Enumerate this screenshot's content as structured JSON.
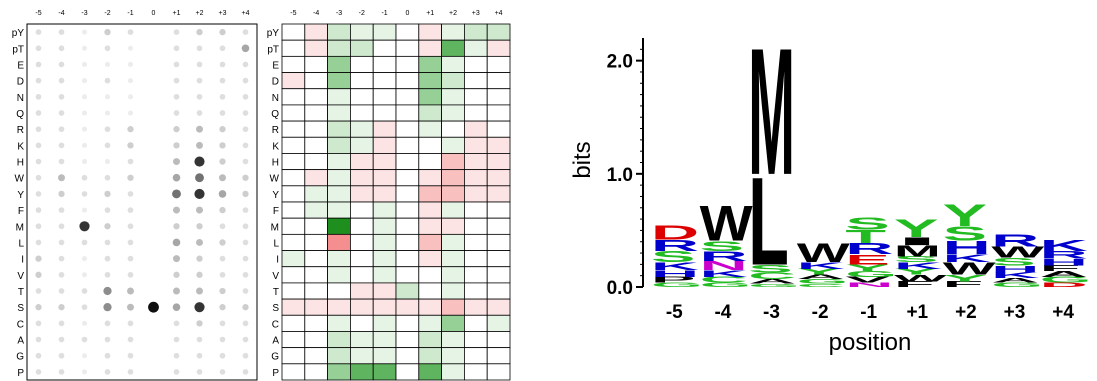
{
  "positions": [
    "-5",
    "-4",
    "-3",
    "-2",
    "-1",
    "0",
    "+1",
    "+2",
    "+3",
    "+4"
  ],
  "residues": [
    "pY",
    "pT",
    "E",
    "D",
    "N",
    "Q",
    "R",
    "K",
    "H",
    "W",
    "Y",
    "F",
    "M",
    "L",
    "I",
    "V",
    "T",
    "S",
    "C",
    "A",
    "G",
    "P"
  ],
  "spots": [
    [
      0.2,
      0.2,
      0.1,
      0.3,
      0.2,
      0,
      0.2,
      0.3,
      0.3,
      0.2
    ],
    [
      0.2,
      0.2,
      0.1,
      0.2,
      0.1,
      0,
      0.2,
      0.2,
      0.2,
      0.5
    ],
    [
      0.2,
      0.2,
      0.1,
      0.1,
      0.1,
      0,
      0.2,
      0.2,
      0.2,
      0.2
    ],
    [
      0.2,
      0.2,
      0.1,
      0.2,
      0.1,
      0,
      0.2,
      0.2,
      0.2,
      0.2
    ],
    [
      0.2,
      0.2,
      0.1,
      0.1,
      0.1,
      0,
      0.2,
      0.2,
      0.2,
      0.2
    ],
    [
      0.2,
      0.2,
      0.1,
      0.1,
      0.1,
      0,
      0.2,
      0.2,
      0.2,
      0.2
    ],
    [
      0.2,
      0.2,
      0.1,
      0.2,
      0.3,
      0,
      0.3,
      0.4,
      0.3,
      0.2
    ],
    [
      0.2,
      0.2,
      0.1,
      0.2,
      0.3,
      0,
      0.3,
      0.4,
      0.3,
      0.2
    ],
    [
      0.2,
      0.2,
      0.1,
      0.1,
      0.2,
      0,
      0.4,
      0.9,
      0.3,
      0.2
    ],
    [
      0.2,
      0.4,
      0.2,
      0.2,
      0.3,
      0,
      0.5,
      0.7,
      0.4,
      0.3
    ],
    [
      0.2,
      0.3,
      0.2,
      0.3,
      0.2,
      0,
      0.7,
      0.9,
      0.5,
      0.3
    ],
    [
      0.2,
      0.2,
      0.1,
      0.2,
      0.2,
      0,
      0.4,
      0.4,
      0.3,
      0.2
    ],
    [
      0.2,
      0.2,
      0.9,
      0.3,
      0.2,
      0,
      0.3,
      0.3,
      0.2,
      0.2
    ],
    [
      0.2,
      0.2,
      0.2,
      0.2,
      0.2,
      0,
      0.5,
      0.4,
      0.3,
      0.2
    ],
    [
      0.3,
      0.2,
      0.1,
      0.2,
      0.2,
      0,
      0.4,
      0.3,
      0.2,
      0.2
    ],
    [
      0.3,
      0.2,
      0.1,
      0.2,
      0.2,
      0,
      0.3,
      0.3,
      0.2,
      0.2
    ],
    [
      0.2,
      0.2,
      0.2,
      0.6,
      0.4,
      0,
      0.4,
      0.4,
      0.3,
      0.2
    ],
    [
      0.3,
      0.3,
      0.2,
      0.6,
      0.4,
      1.0,
      0.5,
      0.9,
      0.3,
      0.3
    ],
    [
      0.2,
      0.2,
      0.1,
      0.2,
      0.2,
      0,
      0.2,
      0.3,
      0.2,
      0.2
    ],
    [
      0.2,
      0.2,
      0.2,
      0.2,
      0.2,
      0,
      0.2,
      0.2,
      0.2,
      0.2
    ],
    [
      0.2,
      0.2,
      0.1,
      0.2,
      0.2,
      0,
      0.2,
      0.2,
      0.2,
      0.2
    ],
    [
      0.2,
      0.2,
      0.1,
      0.2,
      0.2,
      0,
      0.2,
      0.2,
      0.2,
      0.2
    ]
  ],
  "heatmap": [
    [
      0,
      -1,
      2,
      1,
      1,
      0,
      -1,
      1,
      2,
      2
    ],
    [
      0,
      -1,
      2,
      2,
      0,
      0,
      -1,
      4,
      1,
      -1
    ],
    [
      0,
      0,
      3,
      0,
      0,
      0,
      3,
      1,
      0,
      0
    ],
    [
      -1,
      0,
      3,
      0,
      0,
      0,
      3,
      2,
      0,
      0
    ],
    [
      0,
      0,
      1,
      0,
      0,
      0,
      3,
      1,
      0,
      0
    ],
    [
      0,
      0,
      1,
      0,
      0,
      0,
      2,
      1,
      0,
      0
    ],
    [
      0,
      0,
      2,
      1,
      -1,
      0,
      1,
      0,
      -1,
      0
    ],
    [
      0,
      0,
      2,
      1,
      -1,
      0,
      0,
      1,
      -1,
      -1
    ],
    [
      0,
      0,
      1,
      -1,
      -1,
      0,
      0,
      -2,
      -1,
      -1
    ],
    [
      0,
      -1,
      1,
      -1,
      -1,
      0,
      -1,
      -2,
      -1,
      -1
    ],
    [
      0,
      1,
      1,
      -1,
      -1,
      0,
      -2,
      -2,
      -1,
      -1
    ],
    [
      0,
      1,
      1,
      0,
      1,
      0,
      -1,
      1,
      0,
      0
    ],
    [
      0,
      0,
      5,
      0,
      1,
      0,
      -1,
      -1,
      0,
      0
    ],
    [
      0,
      0,
      -3,
      0,
      1,
      0,
      -2,
      1,
      0,
      0
    ],
    [
      1,
      0,
      1,
      0,
      1,
      0,
      -1,
      1,
      0,
      0
    ],
    [
      0,
      0,
      1,
      0,
      1,
      0,
      0,
      1,
      0,
      0
    ],
    [
      0,
      0,
      0,
      -1,
      -1,
      2,
      0,
      1,
      0,
      0
    ],
    [
      -1,
      -1,
      -1,
      -1,
      -1,
      -1,
      -1,
      -2,
      -1,
      -1
    ],
    [
      0,
      0,
      1,
      0,
      1,
      0,
      1,
      3,
      0,
      1
    ],
    [
      0,
      0,
      2,
      1,
      1,
      0,
      2,
      1,
      0,
      0
    ],
    [
      0,
      0,
      2,
      1,
      1,
      0,
      2,
      1,
      0,
      0
    ],
    [
      0,
      0,
      3,
      4,
      4,
      0,
      4,
      1,
      0,
      0
    ]
  ],
  "logo": {
    "ylabel": "bits",
    "xlabel": "position",
    "yticks": [
      "0.0",
      "1.0",
      "2.0"
    ],
    "ylim": [
      0,
      2.2
    ],
    "columns": [
      [
        [
          "G",
          0.04
        ],
        [
          "P",
          0.05
        ],
        [
          "H",
          0.06
        ],
        [
          "K",
          0.07
        ],
        [
          "S",
          0.1
        ],
        [
          "R",
          0.1
        ],
        [
          "D",
          0.13
        ]
      ],
      [
        [
          "G",
          0.04
        ],
        [
          "C",
          0.05
        ],
        [
          "K",
          0.06
        ],
        [
          "N",
          0.08
        ],
        [
          "R",
          0.09
        ],
        [
          "S",
          0.09
        ],
        [
          "W",
          0.32
        ]
      ],
      [
        [
          "G",
          0.03
        ],
        [
          "A",
          0.04
        ],
        [
          "C",
          0.06
        ],
        [
          "S",
          0.07
        ],
        [
          "L",
          0.8
        ],
        [
          "M",
          1.15
        ]
      ],
      [
        [
          "C",
          0.03
        ],
        [
          "G",
          0.04
        ],
        [
          "A",
          0.04
        ],
        [
          "Y",
          0.05
        ],
        [
          "K",
          0.06
        ],
        [
          "W",
          0.17
        ]
      ],
      [
        [
          "N",
          0.04
        ],
        [
          "V",
          0.05
        ],
        [
          "G",
          0.05
        ],
        [
          "Y",
          0.06
        ],
        [
          "E",
          0.09
        ],
        [
          "R",
          0.1
        ],
        [
          "T",
          0.12
        ],
        [
          "S",
          0.11
        ]
      ],
      [
        [
          "F",
          0.05
        ],
        [
          "W",
          0.06
        ],
        [
          "Y",
          0.05
        ],
        [
          "K",
          0.06
        ],
        [
          "S",
          0.05
        ],
        [
          "M",
          0.1
        ],
        [
          "I",
          0.07
        ],
        [
          "Y",
          0.16
        ]
      ],
      [
        [
          "F",
          0.05
        ],
        [
          "Y",
          0.06
        ],
        [
          "W",
          0.11
        ],
        [
          "K",
          0.07
        ],
        [
          "H",
          0.12
        ],
        [
          "S",
          0.13
        ],
        [
          "Y",
          0.2
        ]
      ],
      [
        [
          "G",
          0.04
        ],
        [
          "A",
          0.04
        ],
        [
          "K",
          0.05
        ],
        [
          "H",
          0.06
        ],
        [
          "S",
          0.07
        ],
        [
          "W",
          0.1
        ],
        [
          "R",
          0.11
        ]
      ],
      [
        [
          "D",
          0.04
        ],
        [
          "G",
          0.05
        ],
        [
          "A",
          0.05
        ],
        [
          "F",
          0.05
        ],
        [
          "H",
          0.06
        ],
        [
          "R",
          0.07
        ],
        [
          "K",
          0.1
        ]
      ]
    ],
    "logo_positions": [
      "-5",
      "-4",
      "-3",
      "-2",
      "-1",
      "+1",
      "+2",
      "+3",
      "+4"
    ]
  }
}
